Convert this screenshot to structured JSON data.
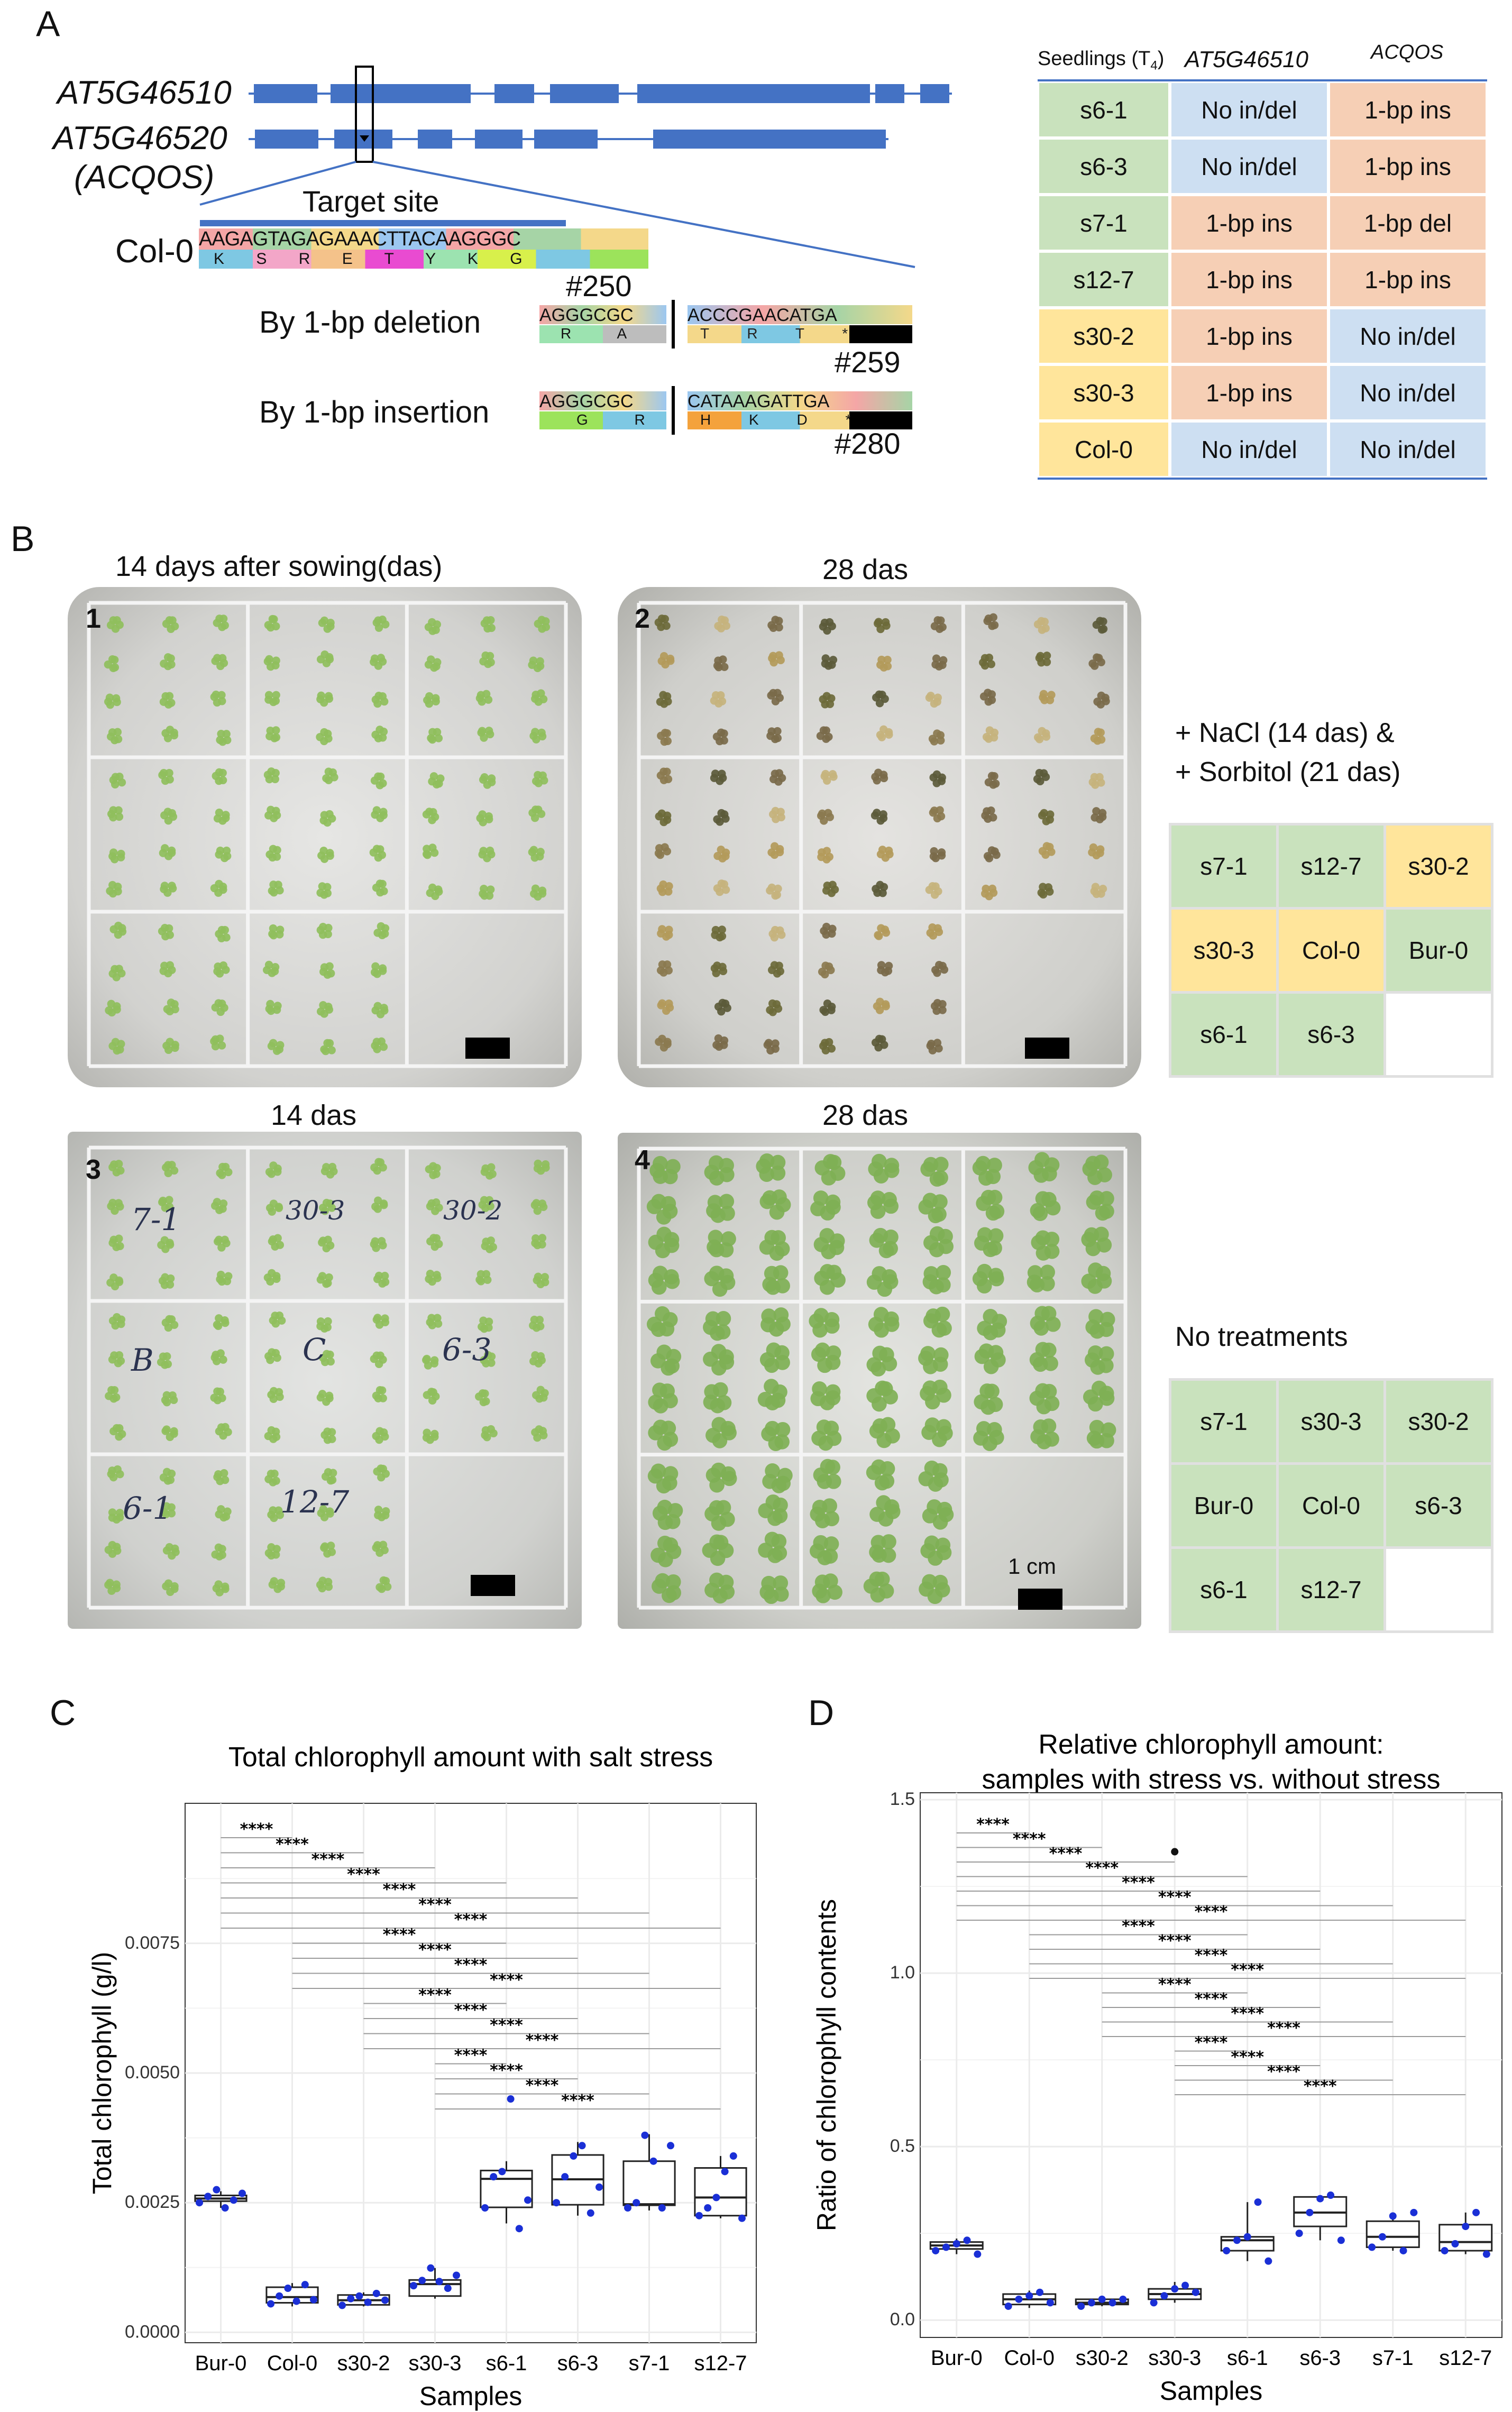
{
  "panel_labels": {
    "a": "A",
    "b": "B",
    "c": "C",
    "d": "D"
  },
  "panel_a": {
    "gene1": "AT5G46510",
    "gene2": "AT5G46520",
    "gene2_alias": "(ACQOS)",
    "target_site": "Target site",
    "col0": "Col-0",
    "col0_seq": "AAGAGTAGAGAAACTTACAAGGGC",
    "col0_aa": "K S R E T Y K G",
    "by_deletion": "By 1-bp deletion",
    "by_insertion": "By 1-bp insertion",
    "n250": "#250",
    "n259": "#259",
    "n280": "#280",
    "del_seq_left": "AGGGCGC",
    "del_seq_right": "ACCCGAACATGA",
    "del_aa_left": "R A",
    "del_aa_right": "T R T *",
    "ins_seq_left": "AGGGCGC",
    "ins_seq_right": "CATAAAGATTGA",
    "ins_aa_left": "G R",
    "ins_aa_right": "H K D *",
    "table_header": {
      "seedlings": "Seedlings (T",
      "seedlings_sub": "4",
      "seedlings_close": ")",
      "g1": "AT5G46510",
      "g2": "ACQOS"
    },
    "table_rows": [
      {
        "line": "s6-1",
        "g1": "No in/del",
        "g2": "1-bp ins",
        "color": "green"
      },
      {
        "line": "s6-3",
        "g1": "No in/del",
        "g2": "1-bp ins",
        "color": "green"
      },
      {
        "line": "s7-1",
        "g1": "1-bp ins",
        "g2": "1-bp del",
        "color": "green"
      },
      {
        "line": "s12-7",
        "g1": "1-bp ins",
        "g2": "1-bp ins",
        "color": "green"
      },
      {
        "line": "s30-2",
        "g1": "1-bp ins",
        "g2": "No in/del",
        "color": "yellow"
      },
      {
        "line": "s30-3",
        "g1": "1-bp ins",
        "g2": "No in/del",
        "color": "yellow"
      },
      {
        "line": "Col-0",
        "g1": "No in/del",
        "g2": "No in/del",
        "color": "yellow"
      }
    ]
  },
  "panel_b": {
    "photo1_title": "14 days after sowing(das)",
    "photo2_title": "28 das",
    "photo3_title": "14 das",
    "photo4_title": "28 das",
    "photo_nums": [
      "1",
      "2",
      "3",
      "4"
    ],
    "scale_label": "1 cm",
    "handwritten": [
      "7-1",
      "30-3",
      "30-2",
      "B",
      "C",
      "6-3",
      "6-1",
      "12-7"
    ],
    "treat_label1": "+ NaCl (14 das) &",
    "treat_label2": "+ Sorbitol (21 das)",
    "treat_grid": [
      [
        "s7-1",
        "s12-7",
        "s30-2"
      ],
      [
        "s30-3",
        "Col-0",
        "Bur-0"
      ],
      [
        "s6-1",
        "s6-3",
        ""
      ]
    ],
    "treat_colors": [
      [
        "green",
        "green",
        "yellow"
      ],
      [
        "yellow",
        "yellow",
        "green"
      ],
      [
        "green",
        "green",
        "white"
      ]
    ],
    "none_label": "No treatments",
    "none_grid": [
      [
        "s7-1",
        "s30-3",
        "s30-2"
      ],
      [
        "Bur-0",
        "Col-0",
        "s6-3"
      ],
      [
        "s6-1",
        "s12-7",
        ""
      ]
    ],
    "none_colors": [
      [
        "green",
        "green",
        "green"
      ],
      [
        "green",
        "green",
        "green"
      ],
      [
        "green",
        "green",
        "white"
      ]
    ]
  },
  "chart_data": [
    {
      "type": "box",
      "title": "Total chlorophyll amount with salt stress",
      "xlabel": "Samples",
      "ylabel": "Total chlorophyll (g/l)",
      "categories": [
        "Bur-0",
        "Col-0",
        "s30-2",
        "s30-3",
        "s6-1",
        "s6-3",
        "s7-1",
        "s12-7"
      ],
      "yticks": [
        "0.0000",
        "0.0025",
        "0.0050",
        "0.0075"
      ],
      "ylim": [
        -0.0002,
        0.0102
      ],
      "boxes": [
        {
          "q1": 0.00253,
          "median": 0.00258,
          "q3": 0.00264,
          "lo": 0.0024,
          "hi": 0.00272
        },
        {
          "q1": 0.00057,
          "median": 0.00068,
          "q3": 0.00087,
          "lo": 0.0005,
          "hi": 0.00095
        },
        {
          "q1": 0.00053,
          "median": 0.00062,
          "q3": 0.00072,
          "lo": 0.0005,
          "hi": 0.00077
        },
        {
          "q1": 0.0007,
          "median": 0.00093,
          "q3": 0.00101,
          "lo": 0.00065,
          "hi": 0.00124
        },
        {
          "q1": 0.00241,
          "median": 0.00296,
          "q3": 0.00312,
          "lo": 0.0021,
          "hi": 0.0033
        },
        {
          "q1": 0.00246,
          "median": 0.00295,
          "q3": 0.00342,
          "lo": 0.00225,
          "hi": 0.00367
        },
        {
          "q1": 0.00245,
          "median": 0.00247,
          "q3": 0.0033,
          "lo": 0.00235,
          "hi": 0.00382
        },
        {
          "q1": 0.00225,
          "median": 0.0026,
          "q3": 0.00317,
          "lo": 0.0022,
          "hi": 0.0034
        }
      ],
      "points": [
        [
          0.0025,
          0.00262,
          0.00275,
          0.0024,
          0.00255,
          0.00268
        ],
        [
          0.00055,
          0.0007,
          0.00085,
          0.0006,
          0.00092,
          0.00063
        ],
        [
          0.00052,
          0.00065,
          0.0007,
          0.00058,
          0.00075,
          0.00062
        ],
        [
          0.0009,
          0.001,
          0.00124,
          0.00098,
          0.00085,
          0.0011
        ],
        [
          0.0024,
          0.003,
          0.0031,
          0.0045,
          0.002,
          0.00255
        ],
        [
          0.0025,
          0.003,
          0.0034,
          0.0036,
          0.0023,
          0.0028
        ],
        [
          0.0024,
          0.0025,
          0.0038,
          0.0033,
          0.0024,
          0.0036
        ],
        [
          0.00225,
          0.0024,
          0.0026,
          0.0031,
          0.0034,
          0.0022
        ]
      ],
      "sig_label": "****",
      "sig_pairs": [
        [
          0,
          1
        ],
        [
          0,
          2
        ],
        [
          0,
          3
        ],
        [
          0,
          4
        ],
        [
          0,
          5
        ],
        [
          0,
          6
        ],
        [
          0,
          7
        ],
        [
          1,
          4
        ],
        [
          1,
          5
        ],
        [
          1,
          6
        ],
        [
          1,
          7
        ],
        [
          2,
          4
        ],
        [
          2,
          5
        ],
        [
          2,
          6
        ],
        [
          2,
          7
        ],
        [
          3,
          4
        ],
        [
          3,
          5
        ],
        [
          3,
          6
        ],
        [
          3,
          7
        ]
      ]
    },
    {
      "type": "box",
      "title": "Relative chlorophyll amount:",
      "title2": "samples with stress vs. without stress",
      "xlabel": "Samples",
      "ylabel": "Ratio of chlorophyll contents",
      "categories": [
        "Bur-0",
        "Col-0",
        "s30-2",
        "s30-3",
        "s6-1",
        "s6-3",
        "s7-1",
        "s12-7"
      ],
      "yticks": [
        "0.0",
        "0.5",
        "1.0",
        "1.5"
      ],
      "ylim": [
        -0.05,
        1.52
      ],
      "boxes": [
        {
          "q1": 0.205,
          "median": 0.215,
          "q3": 0.225,
          "lo": 0.19,
          "hi": 0.235
        },
        {
          "q1": 0.045,
          "median": 0.06,
          "q3": 0.075,
          "lo": 0.035,
          "hi": 0.085
        },
        {
          "q1": 0.045,
          "median": 0.05,
          "q3": 0.06,
          "lo": 0.04,
          "hi": 0.065
        },
        {
          "q1": 0.06,
          "median": 0.075,
          "q3": 0.09,
          "lo": 0.05,
          "hi": 0.11
        },
        {
          "q1": 0.2,
          "median": 0.23,
          "q3": 0.24,
          "lo": 0.17,
          "hi": 0.34
        },
        {
          "q1": 0.27,
          "median": 0.31,
          "q3": 0.355,
          "lo": 0.23,
          "hi": 0.36
        },
        {
          "q1": 0.21,
          "median": 0.24,
          "q3": 0.285,
          "lo": 0.2,
          "hi": 0.31
        },
        {
          "q1": 0.2,
          "median": 0.225,
          "q3": 0.275,
          "lo": 0.19,
          "hi": 0.31
        }
      ],
      "points": [
        [
          0.2,
          0.21,
          0.22,
          0.23,
          0.19
        ],
        [
          0.04,
          0.06,
          0.07,
          0.08,
          0.05
        ],
        [
          0.04,
          0.05,
          0.06,
          0.05,
          0.06
        ],
        [
          0.05,
          0.07,
          0.09,
          0.1,
          0.08
        ],
        [
          0.2,
          0.23,
          0.24,
          0.34,
          0.17
        ],
        [
          0.25,
          0.31,
          0.35,
          0.36,
          0.23
        ],
        [
          0.21,
          0.24,
          0.3,
          0.2,
          0.31
        ],
        [
          0.2,
          0.22,
          0.27,
          0.31,
          0.19
        ]
      ],
      "outliers": [
        [
          3,
          1.35
        ]
      ],
      "sig_label": "****",
      "sig_pairs": [
        [
          0,
          1
        ],
        [
          0,
          2
        ],
        [
          0,
          3
        ],
        [
          0,
          4
        ],
        [
          0,
          5
        ],
        [
          0,
          6
        ],
        [
          0,
          7
        ],
        [
          1,
          4
        ],
        [
          1,
          5
        ],
        [
          1,
          6
        ],
        [
          1,
          7
        ],
        [
          2,
          4
        ],
        [
          2,
          5
        ],
        [
          2,
          6
        ],
        [
          2,
          7
        ],
        [
          3,
          4
        ],
        [
          3,
          5
        ],
        [
          3,
          6
        ],
        [
          3,
          7
        ]
      ]
    }
  ]
}
